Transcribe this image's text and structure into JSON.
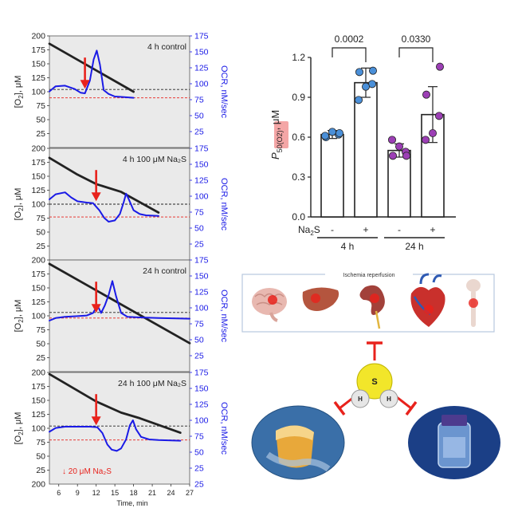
{
  "colors": {
    "o2_line": "#222222",
    "ocr_line": "#1a1ae6",
    "arrow": "#e8221c",
    "black_dashed": "#222222",
    "red_dashed": "#e8221c",
    "left_panel_bg": "#eaeaea",
    "dot_blue": "#4a8fd8",
    "dot_purple": "#9c3fb5",
    "pvalue_highlight": "#f4a6a6"
  },
  "left_axis_label": "[O",
  "left_axis_label_sub": "2",
  "left_axis_label_end": "], μM",
  "right_axis_label": "OCR, nM/sec",
  "x_axis_label": "Time, min",
  "x_ticks": [
    "6",
    "9",
    "12",
    "15",
    "18",
    "21",
    "24",
    "27"
  ],
  "legend_note": "↓ 20 μM Na₂S",
  "chart_data": [
    {
      "type": "line",
      "title": "4 h control",
      "left_ylim": [
        0,
        200
      ],
      "right_ylim": [
        0,
        175
      ],
      "xlim": [
        4.5,
        27
      ],
      "series": [
        {
          "axis": "left",
          "x": [
            4.5,
            18
          ],
          "values": [
            186,
            100
          ]
        },
        {
          "axis": "right",
          "x": [
            4.5,
            5.5,
            7,
            8.5,
            9.5,
            10.2,
            11,
            11.6,
            12.1,
            12.6,
            13.2,
            14,
            15,
            16.5,
            18
          ],
          "values": [
            88,
            96,
            97,
            92,
            86,
            85,
            105,
            138,
            152,
            130,
            90,
            84,
            80,
            79,
            78
          ]
        },
        {
          "type": "hline",
          "style": "black-dashed",
          "axis": "left",
          "value": 104
        },
        {
          "type": "hline",
          "style": "red-dashed",
          "axis": "left",
          "value": 89
        }
      ],
      "arrow_x": 10.2
    },
    {
      "type": "line",
      "title": "4 h 100 μM Na₂S",
      "left_ylim": [
        0,
        200
      ],
      "right_ylim": [
        0,
        175
      ],
      "xlim": [
        4.5,
        27
      ],
      "series": [
        {
          "axis": "left",
          "x": [
            4.5,
            9,
            12,
            16,
            22
          ],
          "values": [
            183,
            153,
            136,
            122,
            85
          ]
        },
        {
          "axis": "right",
          "x": [
            4.5,
            5.5,
            7,
            8,
            9,
            10.5,
            11.5,
            12.5,
            13.3,
            14,
            15,
            15.8,
            16.4,
            16.8,
            17.2,
            18,
            19,
            20,
            22
          ],
          "values": [
            95,
            103,
            106,
            98,
            92,
            90,
            89,
            78,
            66,
            60,
            62,
            72,
            90,
            104,
            96,
            78,
            72,
            70,
            69
          ]
        },
        {
          "type": "hline",
          "style": "black-dashed",
          "axis": "left",
          "value": 100
        },
        {
          "type": "hline",
          "style": "red-dashed",
          "axis": "left",
          "value": 77
        }
      ],
      "arrow_x": 12
    },
    {
      "type": "line",
      "title": "24 h control",
      "left_ylim": [
        0,
        200
      ],
      "right_ylim": [
        0,
        175
      ],
      "xlim": [
        4.5,
        27
      ],
      "series": [
        {
          "axis": "left",
          "x": [
            4.5,
            27
          ],
          "values": [
            193,
            51
          ]
        },
        {
          "axis": "right",
          "x": [
            4.5,
            5.5,
            7,
            9,
            10.5,
            11.5,
            12.2,
            12.8,
            13.4,
            14,
            14.6,
            15.2,
            16,
            17,
            19,
            22,
            27
          ],
          "values": [
            80,
            84,
            86,
            87,
            88,
            92,
            104,
            92,
            104,
            120,
            142,
            118,
            92,
            86,
            85,
            84,
            83
          ]
        },
        {
          "type": "hline",
          "style": "black-dashed",
          "axis": "left",
          "value": 106
        },
        {
          "type": "hline",
          "style": "red-dashed",
          "axis": "left",
          "value": 96
        }
      ],
      "arrow_x": 12
    },
    {
      "type": "line",
      "title": "24 h 100 μM Na₂S",
      "left_ylim": [
        0,
        200
      ],
      "right_ylim": [
        0,
        175
      ],
      "xlim": [
        4.5,
        27
      ],
      "series": [
        {
          "axis": "left",
          "x": [
            4.5,
            12,
            16,
            19,
            25.5
          ],
          "values": [
            197,
            148,
            128,
            118,
            92
          ]
        },
        {
          "axis": "right",
          "x": [
            4.5,
            5.5,
            7,
            9,
            11,
            12.2,
            13,
            13.8,
            14.5,
            15.3,
            16,
            16.8,
            17.4,
            17.9,
            18.4,
            19.2,
            20.5,
            22,
            25.5
          ],
          "values": [
            82,
            88,
            90,
            90,
            90,
            89,
            80,
            62,
            54,
            52,
            56,
            70,
            92,
            100,
            86,
            74,
            70,
            69,
            68
          ]
        },
        {
          "type": "hline",
          "style": "black-dashed",
          "axis": "left",
          "value": 104
        },
        {
          "type": "hline",
          "style": "red-dashed",
          "axis": "left",
          "value": 79
        }
      ],
      "arrow_x": 12
    },
    {
      "type": "bar",
      "categories": [
        "4 h -",
        "4 h +",
        "24 h -",
        "24 h +"
      ],
      "values": [
        0.62,
        1.01,
        0.5,
        0.77
      ],
      "errors": [
        0.03,
        0.11,
        0.05,
        0.21
      ],
      "points": [
        [
          0.6,
          0.62,
          0.64,
          0.61,
          0.63
        ],
        [
          1.09,
          1.0,
          0.98,
          0.88,
          1.1
        ],
        [
          0.46,
          0.49,
          0.53,
          0.58,
          0.46
        ],
        [
          0.92,
          0.76,
          0.63,
          0.58,
          1.13
        ]
      ],
      "point_colors": [
        "#4a8fd8",
        "#4a8fd8",
        "#9c3fb5",
        "#9c3fb5"
      ],
      "ylim": [
        0,
        1.2
      ],
      "yticks": [
        "0.0",
        "0.3",
        "0.6",
        "0.9",
        "1.2"
      ],
      "ylabel_main": "P",
      "ylabel_sub": "50(O2)",
      "ylabel_end": ", μM",
      "na2s_label": "Na",
      "na2s_sub": "2",
      "na2s_end": "S",
      "signs": [
        "-",
        "+",
        "-",
        "+"
      ],
      "groups": [
        "4 h",
        "24 h"
      ],
      "pvalues": [
        "0.0002",
        "0.0330"
      ]
    }
  ],
  "illustration": {
    "title": "Ischemia reperfusion",
    "molecule_atoms": [
      "S",
      "H",
      "H"
    ]
  }
}
